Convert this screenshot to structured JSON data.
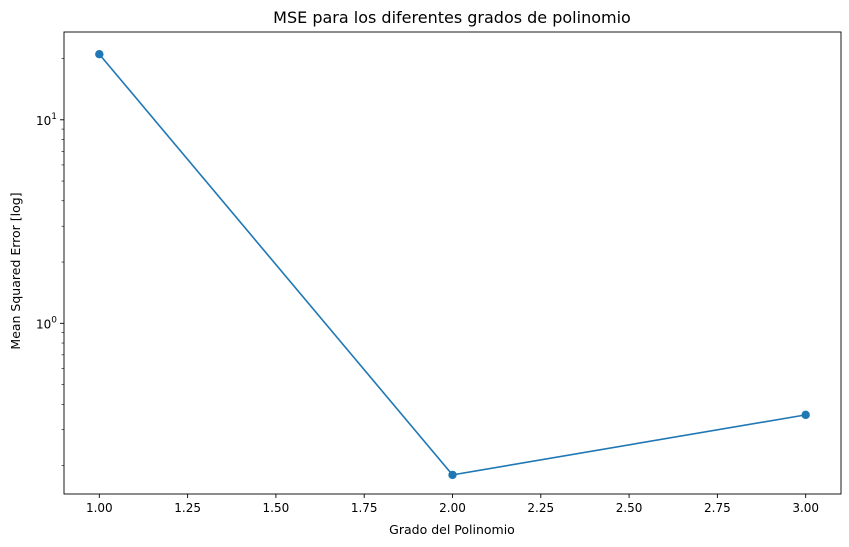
{
  "chart_data": {
    "type": "line",
    "title": "MSE para los diferentes grados de polinomio",
    "xlabel": "Grado del Polinomio",
    "ylabel": "Mean Squared Error [log]",
    "yscale": "log",
    "x": [
      1.0,
      2.0,
      3.0
    ],
    "series": [
      {
        "values": [
          21.0,
          0.18,
          0.355
        ],
        "color": "#1f77b4",
        "marker": "circle"
      }
    ],
    "xlim": [
      0.9,
      3.1
    ],
    "ylim": [
      0.145,
      27.0
    ],
    "x_ticks": [
      1.0,
      1.25,
      1.5,
      1.75,
      2.0,
      2.25,
      2.5,
      2.75,
      3.0
    ],
    "x_tick_labels": [
      "1.00",
      "1.25",
      "1.50",
      "1.75",
      "2.00",
      "2.25",
      "2.50",
      "2.75",
      "3.00"
    ],
    "y_major_ticks": [
      1,
      10
    ],
    "y_major_tick_labels": [
      {
        "base": "10",
        "exp": "0"
      },
      {
        "base": "10",
        "exp": "1"
      }
    ],
    "grid": false,
    "legend": "none"
  }
}
